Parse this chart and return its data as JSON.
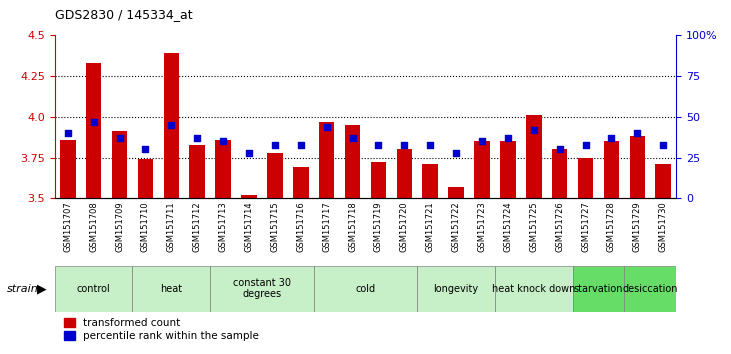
{
  "title": "GDS2830 / 145334_at",
  "samples": [
    "GSM151707",
    "GSM151708",
    "GSM151709",
    "GSM151710",
    "GSM151711",
    "GSM151712",
    "GSM151713",
    "GSM151714",
    "GSM151715",
    "GSM151716",
    "GSM151717",
    "GSM151718",
    "GSM151719",
    "GSM151720",
    "GSM151721",
    "GSM151722",
    "GSM151723",
    "GSM151724",
    "GSM151725",
    "GSM151726",
    "GSM151727",
    "GSM151728",
    "GSM151729",
    "GSM151730"
  ],
  "red_values": [
    3.86,
    4.33,
    3.91,
    3.74,
    4.39,
    3.83,
    3.86,
    3.52,
    3.78,
    3.69,
    3.97,
    3.95,
    3.72,
    3.8,
    3.71,
    3.57,
    3.85,
    3.85,
    4.01,
    3.8,
    3.75,
    3.85,
    3.88,
    3.71
  ],
  "blue_percentile": [
    40,
    47,
    37,
    30,
    45,
    37,
    35,
    28,
    33,
    33,
    44,
    37,
    33,
    33,
    33,
    28,
    35,
    37,
    42,
    30,
    33,
    37,
    40,
    33
  ],
  "groups": [
    {
      "label": "control",
      "start": 0,
      "end": 2,
      "color": "#c8f0c8"
    },
    {
      "label": "heat",
      "start": 3,
      "end": 5,
      "color": "#c8f0c8"
    },
    {
      "label": "constant 30\ndegrees",
      "start": 6,
      "end": 9,
      "color": "#c8f0c8"
    },
    {
      "label": "cold",
      "start": 10,
      "end": 13,
      "color": "#c8f0c8"
    },
    {
      "label": "longevity",
      "start": 14,
      "end": 16,
      "color": "#c8f0c8"
    },
    {
      "label": "heat knock down",
      "start": 17,
      "end": 19,
      "color": "#c8f0c8"
    },
    {
      "label": "starvation",
      "start": 20,
      "end": 21,
      "color": "#66dd66"
    },
    {
      "label": "desiccation",
      "start": 22,
      "end": 23,
      "color": "#66dd66"
    }
  ],
  "ylim_left": [
    3.5,
    4.5
  ],
  "ylim_right": [
    0,
    100
  ],
  "yticks_left": [
    3.5,
    3.75,
    4.0,
    4.25,
    4.5
  ],
  "yticks_right": [
    0,
    25,
    50,
    75,
    100
  ],
  "bar_color": "#cc0000",
  "dot_color": "#0000cc",
  "bar_width": 0.6,
  "strain_label": "strain",
  "legend_items": [
    "transformed count",
    "percentile rank within the sample"
  ],
  "tick_label_bg": "#d8d8d8",
  "group_bg": "#d8d8d8"
}
